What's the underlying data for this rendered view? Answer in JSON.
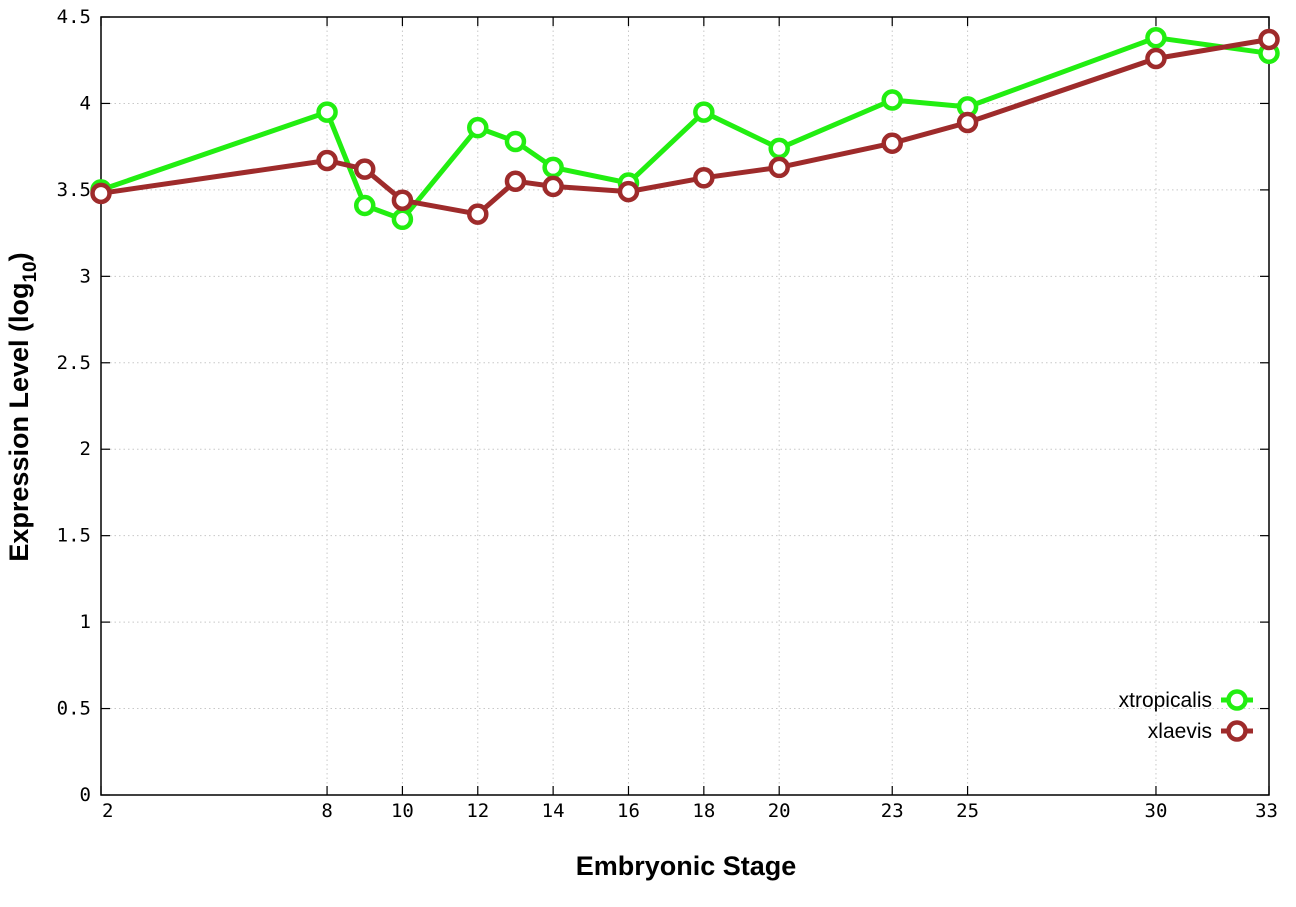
{
  "chart_data": {
    "type": "line",
    "xlabel": "Embryonic Stage",
    "ylabel_main": "Expression Level (log",
    "ylabel_sub": "10",
    "ylabel_close": ")",
    "xlim": [
      2,
      33
    ],
    "ylim": [
      0,
      4.5
    ],
    "x_ticks": [
      2,
      8,
      10,
      12,
      14,
      16,
      18,
      20,
      23,
      25,
      30,
      33
    ],
    "x_tick_labels": [
      "2",
      "8",
      "10",
      "12",
      "14",
      "16",
      "18",
      "20",
      "23",
      "25",
      "30",
      "33"
    ],
    "y_ticks": [
      0,
      0.5,
      1,
      1.5,
      2,
      2.5,
      3,
      3.5,
      4,
      4.5
    ],
    "y_tick_labels": [
      "0",
      "0.5",
      "1",
      "1.5",
      "2",
      "2.5",
      "3",
      "3.5",
      "4",
      "4.5"
    ],
    "x_positions": [
      2,
      8,
      9,
      10,
      12,
      13,
      14,
      16,
      18,
      20,
      23,
      25,
      30,
      33
    ],
    "x_position_to_stage_note": "",
    "grid": true,
    "legend_position": "bottom-right",
    "series": [
      {
        "name": "xtropicalis",
        "color": "#22ee11",
        "x": [
          2,
          8,
          9,
          10,
          12,
          13,
          14,
          16,
          18,
          20,
          23,
          25,
          30,
          33
        ],
        "values": [
          3.5,
          3.95,
          3.41,
          3.33,
          3.86,
          3.78,
          3.63,
          3.54,
          3.95,
          3.74,
          4.02,
          3.98,
          4.38,
          4.29
        ]
      },
      {
        "name": "xlaevis",
        "color": "#9e2b2b",
        "x": [
          2,
          8,
          9,
          10,
          12,
          13,
          14,
          16,
          18,
          20,
          23,
          25,
          30,
          33
        ],
        "values": [
          3.48,
          3.67,
          3.62,
          3.44,
          3.36,
          3.55,
          3.52,
          3.49,
          3.57,
          3.63,
          3.77,
          3.89,
          4.26,
          4.37
        ]
      }
    ]
  }
}
